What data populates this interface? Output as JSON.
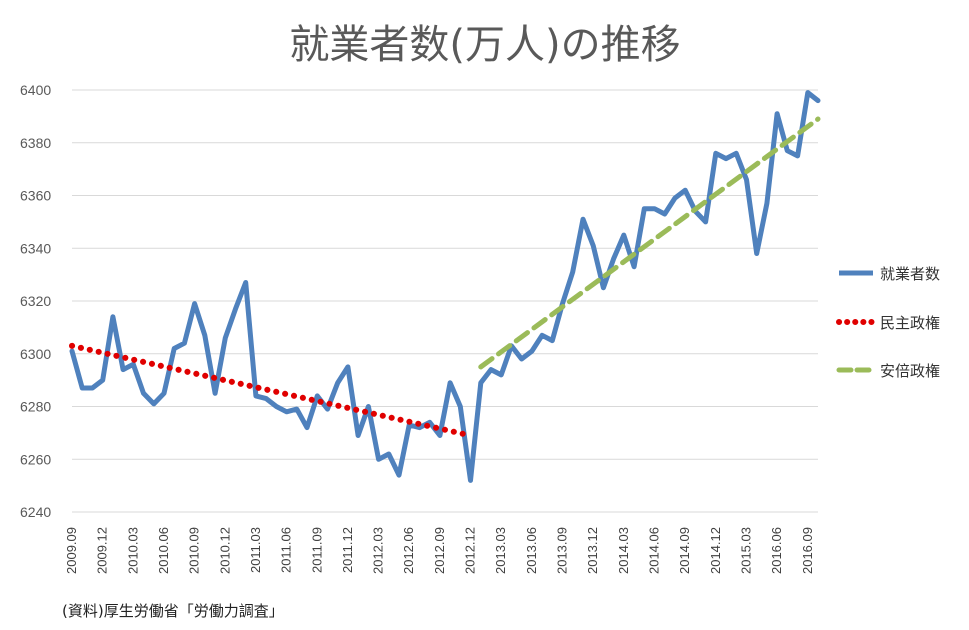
{
  "chart_data": {
    "type": "line",
    "title": "就業者数(万人)の推移",
    "source_note": "(資料)厚生労働省「労働力調査」",
    "ylim": [
      6240,
      6400
    ],
    "yticks": [
      6240,
      6260,
      6280,
      6300,
      6320,
      6340,
      6360,
      6380,
      6400
    ],
    "x_tick_labels": [
      "2009.09",
      "2009.12",
      "2010.03",
      "2010.06",
      "2010.09",
      "2010.12",
      "2011.03",
      "2011.06",
      "2011.09",
      "2011.12",
      "2012.03",
      "2012.06",
      "2012.09",
      "2012.12",
      "2013.03",
      "2013.06",
      "2013.09",
      "2013.12",
      "2014.03",
      "2014.06",
      "2014.09",
      "2014.12",
      "2015.03",
      "2016.06",
      "2016.09"
    ],
    "x_tick_months": [
      0,
      3,
      6,
      9,
      12,
      15,
      18,
      21,
      24,
      27,
      30,
      33,
      36,
      39,
      42,
      45,
      48,
      51,
      54,
      57,
      60,
      63,
      66,
      69,
      72
    ],
    "grid": true,
    "legend_position": "right",
    "series": [
      {
        "name": "就業者数",
        "style": "solid",
        "color": "#4F81BD",
        "values": [
          6301,
          6287,
          6287,
          6290,
          6314,
          6294,
          6296,
          6285,
          6281,
          6285,
          6302,
          6304,
          6319,
          6307,
          6285,
          6306,
          6317,
          6327,
          6284,
          6283,
          6280,
          6278,
          6279,
          6272,
          6284,
          6279,
          6289,
          6295,
          6269,
          6280,
          6260,
          6262,
          6254,
          6273,
          6272,
          6274,
          6269,
          6289,
          6280,
          6252,
          6289,
          6294,
          6292,
          6303,
          6298,
          6301,
          6307,
          6305,
          6319,
          6331,
          6351,
          6341,
          6325,
          6336,
          6345,
          6333,
          6355,
          6355,
          6353,
          6359,
          6362,
          6354,
          6350,
          6376,
          6374,
          6376,
          6366,
          6338,
          6357,
          6391,
          6377,
          6375,
          6399,
          6396
        ]
      },
      {
        "name": "民主政権",
        "style": "dotted",
        "color": "#E00000",
        "start_month": 0,
        "end_month": 39,
        "values": [
          6303,
          6269
        ]
      },
      {
        "name": "安倍政権",
        "style": "dashed",
        "color": "#9BBB59",
        "start_month": 40,
        "end_month": 73,
        "values": [
          6295,
          6389
        ]
      }
    ]
  }
}
